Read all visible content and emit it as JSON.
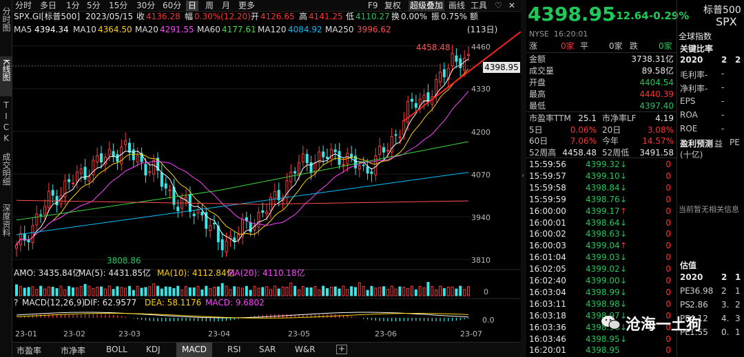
{
  "left_tabs": [
    "分时图",
    "K线图",
    "TICK",
    "成交明细",
    "深度资料"
  ],
  "toolbar": {
    "periods": [
      "分时",
      "多日",
      "1分",
      "5分",
      "15分",
      "30分",
      "60分",
      "日",
      "周",
      "月",
      "更多"
    ],
    "active_period": "日",
    "right_items": [
      "F9",
      "复权",
      "超级叠加",
      "画线",
      "工具"
    ],
    "heart_icon": "heart-icon",
    "close_icon": "close-icon"
  },
  "info_row": {
    "code": "SPX.GI[标普500]",
    "date": "2023/05/15",
    "close_label": "收",
    "close_value": "4136.28",
    "change_label": "幅",
    "change_value": "0.30%(12.20)",
    "open_label": "开",
    "open_value": "4126.65",
    "high_label": "高",
    "high_value": "4141.25",
    "low_label": "低",
    "low_value": "4110.27",
    "turnover_label": "换",
    "turnover_value": "0.00%",
    "amp_label": "振",
    "amp_value": "0.75%",
    "amount_label": "额"
  },
  "ma_row": {
    "items": [
      {
        "label": "MA5",
        "value": "4394.34",
        "color": "#ffffff"
      },
      {
        "label": "MA10",
        "value": "4364.50",
        "color": "#ffd200"
      },
      {
        "label": "MA20",
        "value": "4291.55",
        "color": "#ff44ff"
      },
      {
        "label": "MA60",
        "value": "4177.61",
        "color": "#3cdc3c"
      },
      {
        "label": "MA120",
        "value": "4084.92",
        "color": "#00c0ff"
      },
      {
        "label": "MA250",
        "value": "3996.62",
        "color": "#ff5050"
      }
    ],
    "count_label": "(113日)"
  },
  "price_axis": [
    "4460",
    "4330",
    "4200",
    "4070",
    "3940",
    "3810"
  ],
  "current_price_tag": "4398.95",
  "high_annotation": "4458.48",
  "low_annotation": "3808.86",
  "amo_row": {
    "amo": "AMO: 3435.84亿",
    "ma5": "MA(5): 4431.85亿",
    "ma10": "MA(10): 4112.84亿",
    "ma20": "MA(20): 4110.18亿"
  },
  "vol_axis": "0",
  "macd_row": {
    "label": "MACD(12,26,9)",
    "dif": "DIF: 62.9577",
    "dea": "DEA: 58.1176",
    "macd": "MACD: 9.6802"
  },
  "macd_axis": "0.0",
  "date_axis": [
    "23-01",
    "23-02",
    "23-03",
    "23-04",
    "23-05",
    "23-06",
    "23-07"
  ],
  "bottom_tabs": [
    "市盈率",
    "市净率",
    "BOLL",
    "KDJ",
    "MACD",
    "RSI",
    "SAR",
    "W&R"
  ],
  "active_bottom_tab": "MACD",
  "quote": {
    "price": "4398.95",
    "change": "-12.64",
    "pct": "-0.29%",
    "name": "标普500",
    "code": "SPX",
    "exchange": "NYSE",
    "time": "16:20:01",
    "up_label": "涨",
    "up_value": "0家",
    "flat_label": "平",
    "flat_value": "0家",
    "down_label": "跌",
    "down_value": "0家",
    "rows": [
      {
        "label": "金额",
        "value": "3738.31亿",
        "color": "white"
      },
      {
        "label": "成交量",
        "value": "89.58亿",
        "color": "white"
      },
      {
        "label": "开盘",
        "value": "4404.54",
        "color": "green"
      },
      {
        "label": "最高",
        "value": "4440.39",
        "color": "red"
      },
      {
        "label": "最低",
        "value": "4397.40",
        "color": "green"
      }
    ],
    "metrics": [
      {
        "l1": "市盈率TTM",
        "v1": "25.1",
        "c1": "white",
        "l2": "市净率LF",
        "v2": "4.19",
        "c2": "white"
      },
      {
        "l1": "5日",
        "v1": "0.06%",
        "c1": "red",
        "l2": "20日",
        "v2": "3.08%",
        "c2": "red"
      },
      {
        "l1": "60日",
        "v1": "7.06%",
        "c1": "red",
        "l2": "今年",
        "v2": "14.57%",
        "c2": "red"
      },
      {
        "l1": "52周高",
        "v1": "4458.48",
        "c1": "white",
        "l2": "52周低",
        "v2": "3491.58",
        "c2": "white"
      }
    ],
    "ticks": [
      {
        "time": "15:59:56",
        "price": "4399.32",
        "dir": "down",
        "vol": "0"
      },
      {
        "time": "15:59:57",
        "price": "4399.10",
        "dir": "down",
        "vol": "0"
      },
      {
        "time": "15:59:58",
        "price": "4398.84",
        "dir": "down",
        "vol": "0"
      },
      {
        "time": "15:59:59",
        "price": "4398.76",
        "dir": "down",
        "vol": "0"
      },
      {
        "time": "16:00:00",
        "price": "4399.17",
        "dir": "up",
        "vol": "0"
      },
      {
        "time": "16:00:01",
        "price": "4398.64",
        "dir": "down",
        "vol": "0"
      },
      {
        "time": "16:00:02",
        "price": "4398.63",
        "dir": "down",
        "vol": "0"
      },
      {
        "time": "16:00:03",
        "price": "4399.04",
        "dir": "up",
        "vol": "0"
      },
      {
        "time": "16:01:04",
        "price": "4399.03",
        "dir": "down",
        "vol": "0"
      },
      {
        "time": "16:02:05",
        "price": "4399.02",
        "dir": "down",
        "vol": "0"
      },
      {
        "time": "16:02:40",
        "price": "4399.00",
        "dir": "down",
        "vol": "0"
      },
      {
        "time": "16:03:04",
        "price": "4398.99",
        "dir": "down",
        "vol": "0"
      },
      {
        "time": "16:03:11",
        "price": "4398.98",
        "dir": "down",
        "vol": "0"
      },
      {
        "time": "16:03:18",
        "price": "4398.97",
        "dir": "down",
        "vol": "0"
      },
      {
        "time": "16:03:36",
        "price": "4398.96",
        "dir": "down",
        "vol": "0"
      },
      {
        "time": "16:03:46",
        "price": "4398.95",
        "dir": "down",
        "vol": "0"
      },
      {
        "time": "16:20:01",
        "price": "4398.95",
        "dir": "",
        "vol": "0"
      }
    ]
  },
  "far_right": {
    "global_index": "全球指数",
    "key_ratio_title": "关键比率",
    "year_header": [
      "2020",
      "2",
      "2"
    ],
    "ratio_rows": [
      "毛利率-",
      "净利率-",
      "EPS",
      "ROA",
      "ROE"
    ],
    "profit_forecast": "盈利预测",
    "profit_unit": "(十亿)",
    "profit_cols": [
      "益",
      "PE"
    ],
    "no_info": "当前暂无相关信息",
    "valuation_title": "估值",
    "val_header": [
      "2020",
      "2",
      "1"
    ],
    "val_rows": [
      {
        "label": "PE",
        "v1": "36.98",
        "v2": "2",
        "v3": "1"
      },
      {
        "label": "PS",
        "v1": "2.86",
        "v2": "3.",
        "v3": "2"
      },
      {
        "label": "PB",
        "v1": "4.12",
        "v2": "4.",
        "v3": "3"
      },
      {
        "label": "PE",
        "v1": "1.55",
        "v2": "0.",
        "v3": "1"
      }
    ]
  },
  "watermark": "沧海一土狗"
}
